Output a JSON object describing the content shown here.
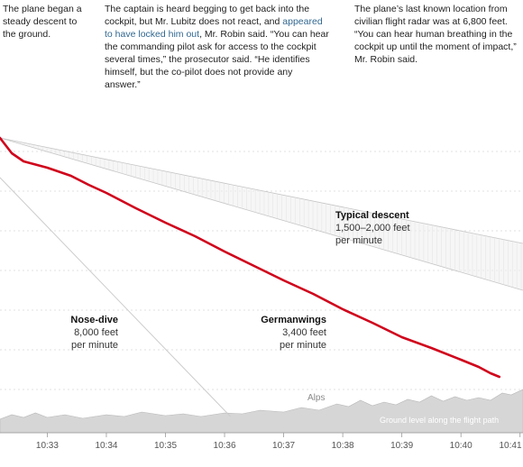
{
  "notes": {
    "n1": "The plane began a steady descent to the ground.",
    "n2_a": "The captain is heard begging to get back into the cockpit, but Mr. Lubitz does not react, and ",
    "n2_link": "appeared to have locked him out",
    "n2_b": ", Mr. Robin said. “You can hear the commanding pilot ask for access to the cockpit several times,” the prosecutor said. “He identifies himself, but the co-pilot does not provide any answer.”",
    "n3": "The plane’s last known location from civilian flight radar was at 6,800 feet. “You can hear human breathing in the cockpit up until the moment of impact,” Mr. Robin said."
  },
  "chart_data": {
    "type": "line",
    "x_ticks": [
      "10:33",
      "10:34",
      "10:35",
      "10:36",
      "10:37",
      "10:38",
      "10:39",
      "10:40",
      "10:41"
    ],
    "xlim_minutes": [
      32.2,
      41.05
    ],
    "series": [
      {
        "name": "Germanwings",
        "rate": "3,400 feet",
        "unit": "per minute",
        "color": "#d0021b",
        "points": [
          [
            32.2,
            153
          ],
          [
            32.4,
            170
          ],
          [
            32.6,
            179
          ],
          [
            33.0,
            186
          ],
          [
            33.4,
            195
          ],
          [
            33.7,
            205
          ],
          [
            34.0,
            214
          ],
          [
            34.5,
            231
          ],
          [
            35.0,
            247
          ],
          [
            35.5,
            262
          ],
          [
            36.0,
            279
          ],
          [
            36.5,
            295
          ],
          [
            37.0,
            311
          ],
          [
            37.5,
            326
          ],
          [
            38.0,
            343
          ],
          [
            38.5,
            358
          ],
          [
            39.0,
            374
          ],
          [
            39.5,
            386
          ],
          [
            40.0,
            399
          ],
          [
            40.3,
            407
          ],
          [
            40.5,
            414
          ],
          [
            40.65,
            418
          ]
        ]
      },
      {
        "name": "Nose-dive",
        "rate": "8,000 feet",
        "unit": "per minute",
        "color": "#cccccc",
        "points": [
          [
            32.2,
            197
          ],
          [
            36.1,
            462
          ]
        ]
      }
    ],
    "band": {
      "name": "Typical descent",
      "rate": "1,500–2,000 feet",
      "unit": "per minute",
      "upper": [
        [
          32.2,
          153
        ],
        [
          41.05,
          270
        ]
      ],
      "lower": [
        [
          32.2,
          153
        ],
        [
          41.05,
          322
        ]
      ]
    },
    "terrain_label": "Ground level along the flight path",
    "terrain_peak_label": "Alps",
    "terrain": [
      [
        32.2,
        465
      ],
      [
        32.4,
        460
      ],
      [
        32.6,
        463
      ],
      [
        32.8,
        458
      ],
      [
        33.0,
        463
      ],
      [
        33.3,
        460
      ],
      [
        33.6,
        464
      ],
      [
        34.0,
        460
      ],
      [
        34.3,
        462
      ],
      [
        34.6,
        457
      ],
      [
        35.0,
        461
      ],
      [
        35.3,
        459
      ],
      [
        35.6,
        462
      ],
      [
        36.0,
        458
      ],
      [
        36.3,
        459
      ],
      [
        36.6,
        455
      ],
      [
        37.0,
        457
      ],
      [
        37.3,
        452
      ],
      [
        37.6,
        455
      ],
      [
        37.9,
        448
      ],
      [
        38.1,
        451
      ],
      [
        38.3,
        444
      ],
      [
        38.5,
        450
      ],
      [
        38.7,
        446
      ],
      [
        38.9,
        449
      ],
      [
        39.1,
        443
      ],
      [
        39.3,
        446
      ],
      [
        39.5,
        439
      ],
      [
        39.7,
        445
      ],
      [
        39.9,
        440
      ],
      [
        40.1,
        444
      ],
      [
        40.3,
        441
      ],
      [
        40.5,
        444
      ],
      [
        40.7,
        436
      ],
      [
        40.85,
        438
      ],
      [
        41.05,
        432
      ]
    ]
  }
}
